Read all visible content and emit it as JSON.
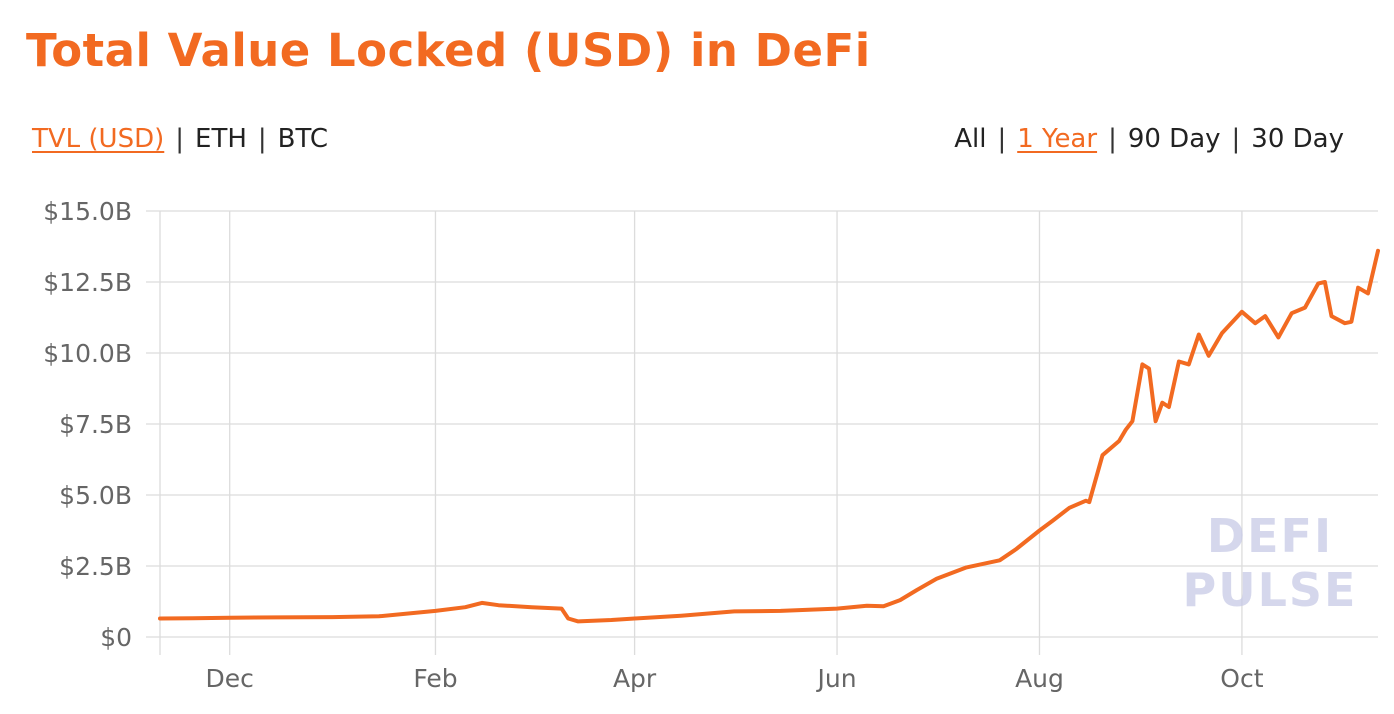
{
  "header": {
    "title": "Total Value Locked (USD) in DeFi"
  },
  "metric_toggles": [
    {
      "label": "TVL (USD)",
      "active": true
    },
    {
      "label": "ETH",
      "active": false
    },
    {
      "label": "BTC",
      "active": false
    }
  ],
  "range_toggles": [
    {
      "label": "All",
      "active": false
    },
    {
      "label": "1 Year",
      "active": true
    },
    {
      "label": "90 Day",
      "active": false
    },
    {
      "label": "30 Day",
      "active": false
    }
  ],
  "separator": "|",
  "watermark": {
    "line1": "DEFI",
    "line2": "PULSE"
  },
  "colors": {
    "accent": "#f26a21",
    "line": "#f26a21",
    "grid": "#dcdcdc",
    "watermark": "#c7c9e6"
  },
  "chart_data": {
    "type": "line",
    "title": "Total Value Locked (USD) in DeFi",
    "xlabel": "",
    "ylabel": "",
    "y_unit": "USD billions",
    "ylim": [
      0,
      15
    ],
    "y_ticks": [
      0,
      2.5,
      5,
      7.5,
      10,
      12.5,
      15
    ],
    "y_tick_labels": [
      "$0",
      "$2.5B",
      "$5.0B",
      "$7.5B",
      "$10.0B",
      "$12.5B",
      "$15.0B"
    ],
    "x_range": [
      "2019-11-10",
      "2020-11-11"
    ],
    "x_ticks": [
      "2019-12-01",
      "2020-02-01",
      "2020-04-01",
      "2020-06-01",
      "2020-08-01",
      "2020-10-01"
    ],
    "x_tick_labels": [
      "Dec",
      "Feb",
      "Apr",
      "Jun",
      "Aug",
      "Oct"
    ],
    "grid": true,
    "legend": "none",
    "series": [
      {
        "x": [
          "2019-11-10",
          "2019-11-20",
          "2019-12-01",
          "2019-12-15",
          "2020-01-01",
          "2020-01-15",
          "2020-02-01",
          "2020-02-10",
          "2020-02-15",
          "2020-02-20",
          "2020-03-01",
          "2020-03-10",
          "2020-03-12",
          "2020-03-15",
          "2020-03-25",
          "2020-04-01",
          "2020-04-15",
          "2020-05-01",
          "2020-05-15",
          "2020-06-01",
          "2020-06-10",
          "2020-06-15",
          "2020-06-20",
          "2020-06-25",
          "2020-07-01",
          "2020-07-10",
          "2020-07-20",
          "2020-07-25",
          "2020-08-01",
          "2020-08-05",
          "2020-08-10",
          "2020-08-15",
          "2020-08-16",
          "2020-08-20",
          "2020-08-25",
          "2020-08-27",
          "2020-08-29",
          "2020-09-01",
          "2020-09-03",
          "2020-09-05",
          "2020-09-07",
          "2020-09-09",
          "2020-09-12",
          "2020-09-15",
          "2020-09-18",
          "2020-09-21",
          "2020-09-25",
          "2020-10-01",
          "2020-10-05",
          "2020-10-08",
          "2020-10-12",
          "2020-10-16",
          "2020-10-20",
          "2020-10-24",
          "2020-10-26",
          "2020-10-28",
          "2020-11-01",
          "2020-11-03",
          "2020-11-05",
          "2020-11-08",
          "2020-11-11"
        ],
        "values": [
          0.65,
          0.66,
          0.68,
          0.69,
          0.7,
          0.73,
          0.92,
          1.05,
          1.2,
          1.12,
          1.05,
          1.0,
          0.65,
          0.55,
          0.6,
          0.65,
          0.75,
          0.9,
          0.92,
          1.0,
          1.1,
          1.08,
          1.3,
          1.65,
          2.05,
          2.45,
          2.7,
          3.1,
          3.75,
          4.1,
          4.55,
          4.8,
          4.75,
          6.4,
          6.9,
          7.3,
          7.6,
          9.6,
          9.45,
          7.6,
          8.25,
          8.1,
          9.7,
          9.6,
          10.65,
          9.9,
          10.7,
          11.45,
          11.05,
          11.3,
          10.55,
          11.4,
          11.6,
          12.45,
          12.5,
          11.3,
          11.05,
          11.1,
          12.3,
          12.1,
          13.6
        ]
      }
    ]
  }
}
